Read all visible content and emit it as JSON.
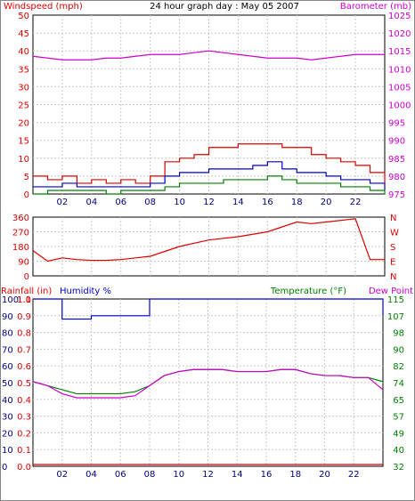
{
  "page_title": "24 hour graph day : May 05 2007",
  "colors": {
    "wind": "#dd0000",
    "gust": "#dd0000",
    "wind_avg": "#0000cc",
    "wind_min": "#008000",
    "barometer": "#cc00cc",
    "direction": "#dd0000",
    "humidity": "#0000cc",
    "temperature": "#008000",
    "dewpoint": "#cc00cc",
    "rainfall": "#dd0000",
    "grid": "#c8c8c8"
  },
  "chart_data": [
    {
      "type": "line",
      "title": "24 hour graph day : May 05 2007",
      "ylabel_left": "Windspeed (mph)",
      "ylabel_right": "Barometer (mb)",
      "ylim_left": [
        0,
        50
      ],
      "ylim_right": [
        975,
        1025
      ],
      "yticks_left": [
        "0",
        "5",
        "10",
        "15",
        "20",
        "25",
        "30",
        "35",
        "40",
        "45",
        "50"
      ],
      "yticks_right": [
        "975",
        "980",
        "985",
        "990",
        "995",
        "1000",
        "1005",
        "1010",
        "1015",
        "1020",
        "1025"
      ],
      "xlim": [
        0,
        24
      ],
      "xticks": [
        "02",
        "04",
        "06",
        "08",
        "10",
        "12",
        "14",
        "16",
        "18",
        "20",
        "22"
      ],
      "grid": true,
      "x": [
        0,
        1,
        2,
        3,
        4,
        5,
        6,
        7,
        8,
        9,
        10,
        11,
        12,
        13,
        14,
        15,
        16,
        17,
        18,
        19,
        20,
        21,
        22,
        23,
        24
      ],
      "series": [
        {
          "key": "gust",
          "values": [
            5,
            4,
            5,
            3,
            4,
            3,
            4,
            3,
            5,
            9,
            10,
            11,
            13,
            13,
            14,
            14,
            14,
            13,
            13,
            11,
            10,
            9,
            8,
            6,
            3
          ]
        },
        {
          "key": "avg",
          "values": [
            2,
            2,
            3,
            2,
            2,
            2,
            2,
            2,
            3,
            5,
            6,
            6,
            7,
            7,
            7,
            8,
            9,
            7,
            6,
            6,
            5,
            4,
            4,
            3,
            1
          ]
        },
        {
          "key": "min",
          "values": [
            0,
            1,
            1,
            1,
            1,
            0,
            1,
            1,
            1,
            2,
            3,
            3,
            3,
            4,
            4,
            4,
            5,
            4,
            3,
            3,
            3,
            2,
            2,
            1,
            0
          ]
        },
        {
          "key": "barometer",
          "values": [
            1013.5,
            1013,
            1012.5,
            1012.5,
            1012.5,
            1013,
            1013,
            1013.5,
            1014,
            1014,
            1014,
            1014.5,
            1015,
            1014.5,
            1014,
            1013.5,
            1013,
            1013,
            1013,
            1012.5,
            1013,
            1013.5,
            1014,
            1014,
            1014
          ]
        }
      ]
    },
    {
      "type": "line",
      "ylim": [
        0,
        360
      ],
      "yticks_left": [
        "0",
        "90",
        "180",
        "270",
        "360"
      ],
      "yticks_right": [
        "N",
        "E",
        "S",
        "W",
        "N"
      ],
      "x": [
        0,
        1,
        2,
        3,
        4,
        5,
        6,
        7,
        8,
        9,
        10,
        11,
        12,
        13,
        14,
        15,
        16,
        17,
        18,
        19,
        20,
        21,
        22,
        23,
        24
      ],
      "series": [
        {
          "key": "direction",
          "values": [
            155,
            90,
            110,
            100,
            95,
            95,
            100,
            110,
            120,
            150,
            180,
            200,
            220,
            230,
            240,
            255,
            270,
            300,
            330,
            320,
            330,
            340,
            350,
            100,
            100
          ]
        }
      ]
    },
    {
      "type": "line",
      "ylabel_left_rain": "Rainfall (in)",
      "ylabel_left_hum": "Humidity %",
      "ylabel_right_temp": "Temperature (°F)",
      "ylabel_right_dew": "Dew Point",
      "yticks_rain": [
        "0.0",
        "0.1",
        "0.2",
        "0.3",
        "0.4",
        "0.5",
        "0.6",
        "0.7",
        "0.8",
        "0.9",
        "1.0",
        "1.1"
      ],
      "yticks_hum": [
        "0",
        "10",
        "20",
        "30",
        "40",
        "50",
        "60",
        "70",
        "80",
        "90",
        "100"
      ],
      "yticks_temp": [
        "32",
        "40",
        "49",
        "57",
        "65",
        "74",
        "82",
        "90",
        "98",
        "107",
        "115"
      ],
      "ylim_humidity": [
        0,
        100
      ],
      "ylim_temperature": [
        32,
        115
      ],
      "x": [
        0,
        1,
        2,
        3,
        4,
        5,
        6,
        7,
        8,
        9,
        10,
        11,
        12,
        13,
        14,
        15,
        16,
        17,
        18,
        19,
        20,
        21,
        22,
        23,
        24
      ],
      "series": [
        {
          "key": "humidity",
          "values": [
            100,
            100,
            88,
            88,
            90,
            90,
            90,
            90,
            100,
            100,
            100,
            100,
            100,
            100,
            100,
            100,
            100,
            100,
            100,
            100,
            100,
            100,
            100,
            100,
            90
          ]
        },
        {
          "key": "temperature",
          "values": [
            74,
            72,
            70,
            68,
            68,
            68,
            68,
            69,
            72,
            77,
            79,
            80,
            80,
            80,
            79,
            79,
            79,
            80,
            80,
            78,
            77,
            77,
            76,
            76,
            74
          ]
        },
        {
          "key": "dewpoint",
          "values": [
            74,
            72,
            68,
            66,
            66,
            66,
            66,
            67,
            72,
            77,
            79,
            80,
            80,
            80,
            79,
            79,
            79,
            80,
            80,
            78,
            77,
            77,
            76,
            76,
            70
          ]
        },
        {
          "key": "rainfall",
          "values": [
            0,
            0,
            0,
            0,
            0,
            0,
            0,
            0,
            0,
            0,
            0,
            0,
            0,
            0,
            0,
            0,
            0,
            0,
            0,
            0,
            0,
            0,
            0,
            0,
            0
          ]
        }
      ]
    }
  ]
}
